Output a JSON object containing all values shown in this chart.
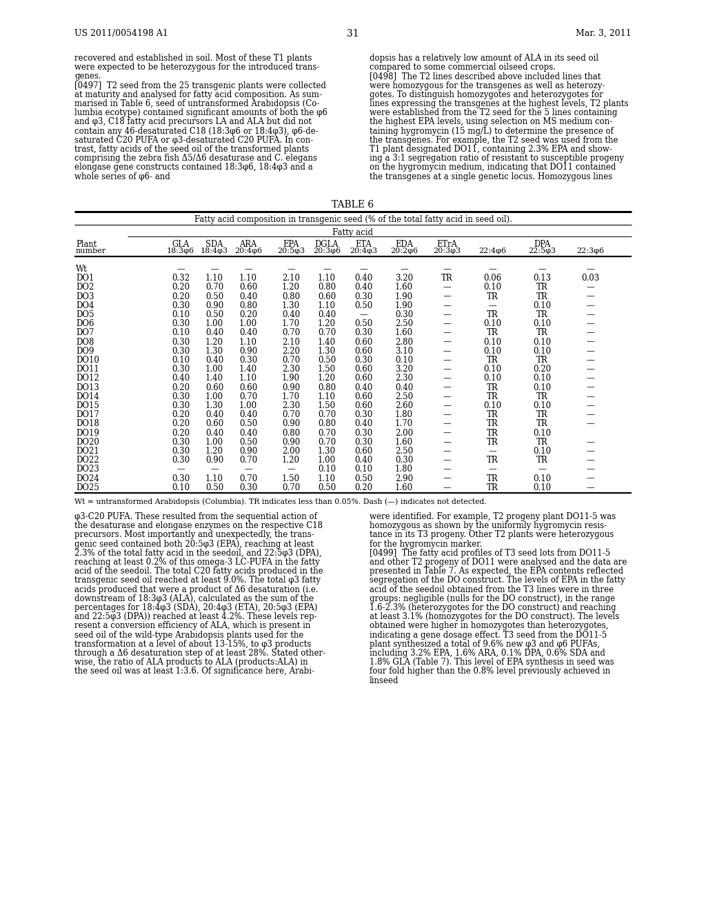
{
  "page_header_left": "US 2011/0054198 A1",
  "page_header_right": "Mar. 3, 2011",
  "page_number": "31",
  "table_title": "TABLE 6",
  "table_subtitle": "Fatty acid composition in transgenic seed (% of the total fatty acid in seed oil).",
  "col_group_header": "Fatty acid",
  "footnote": "Wt = untransformed Arabidopsis (Columbia). TR indicates less than 0.05%. Dash (—) indicates not detected.",
  "col_h1": [
    "Plant",
    "GLA",
    "SDA",
    "ARA",
    "EPA",
    "DGLA",
    "ETA",
    "EDA",
    "ETrA",
    "",
    "DPA",
    ""
  ],
  "col_h2": [
    "number",
    "18:3φ6",
    "18:4φ3",
    "20:4φ6",
    "20:5φ3",
    "20:3φ6",
    "20:4φ3",
    "20:2φ6",
    "20:3φ3",
    "22:4φ6",
    "22:5φ3",
    "22:3φ6"
  ],
  "rows": [
    [
      "Wt",
      "—",
      "—",
      "—",
      "—",
      "—",
      "—",
      "—",
      "—",
      "—",
      "—",
      "—"
    ],
    [
      "DO1",
      "0.32",
      "1.10",
      "1.10",
      "2.10",
      "1.10",
      "0.40",
      "3.20",
      "TR",
      "0.06",
      "0.13",
      "0.03"
    ],
    [
      "DO2",
      "0.20",
      "0.70",
      "0.60",
      "1.20",
      "0.80",
      "0.40",
      "1.60",
      "—",
      "0.10",
      "TR",
      "—"
    ],
    [
      "DO3",
      "0.20",
      "0.50",
      "0.40",
      "0.80",
      "0.60",
      "0.30",
      "1.90",
      "—",
      "TR",
      "TR",
      "—"
    ],
    [
      "DO4",
      "0.30",
      "0.90",
      "0.80",
      "1.30",
      "1.10",
      "0.50",
      "1.90",
      "—",
      "—",
      "0.10",
      "—"
    ],
    [
      "DO5",
      "0.10",
      "0.50",
      "0.20",
      "0.40",
      "0.40",
      "—",
      "0.30",
      "—",
      "TR",
      "TR",
      "—"
    ],
    [
      "DO6",
      "0.30",
      "1.00",
      "1.00",
      "1.70",
      "1.20",
      "0.50",
      "2.50",
      "—",
      "0.10",
      "0.10",
      "—"
    ],
    [
      "DO7",
      "0.10",
      "0.40",
      "0.40",
      "0.70",
      "0.70",
      "0.30",
      "1.60",
      "—",
      "TR",
      "TR",
      "—"
    ],
    [
      "DO8",
      "0.30",
      "1.20",
      "1.10",
      "2.10",
      "1.40",
      "0.60",
      "2.80",
      "—",
      "0.10",
      "0.10",
      "—"
    ],
    [
      "DO9",
      "0.30",
      "1.30",
      "0.90",
      "2.20",
      "1.30",
      "0.60",
      "3.10",
      "—",
      "0.10",
      "0.10",
      "—"
    ],
    [
      "DO10",
      "0.10",
      "0.40",
      "0.30",
      "0.70",
      "0.50",
      "0.30",
      "0.10",
      "—",
      "TR",
      "TR",
      "—"
    ],
    [
      "DO11",
      "0.30",
      "1.00",
      "1.40",
      "2.30",
      "1.50",
      "0.60",
      "3.20",
      "—",
      "0.10",
      "0.20",
      "—"
    ],
    [
      "DO12",
      "0.40",
      "1.40",
      "1.10",
      "1.90",
      "1.20",
      "0.60",
      "2.30",
      "—",
      "0.10",
      "0.10",
      "—"
    ],
    [
      "DO13",
      "0.20",
      "0.60",
      "0.60",
      "0.90",
      "0.80",
      "0.40",
      "0.40",
      "—",
      "TR",
      "0.10",
      "—"
    ],
    [
      "DO14",
      "0.30",
      "1.00",
      "0.70",
      "1.70",
      "1.10",
      "0.60",
      "2.50",
      "—",
      "TR",
      "TR",
      "—"
    ],
    [
      "DO15",
      "0.30",
      "1.30",
      "1.00",
      "2.30",
      "1.50",
      "0.60",
      "2.60",
      "—",
      "0.10",
      "0.10",
      "—"
    ],
    [
      "DO17",
      "0.20",
      "0.40",
      "0.40",
      "0.70",
      "0.70",
      "0.30",
      "1.80",
      "—",
      "TR",
      "TR",
      "—"
    ],
    [
      "DO18",
      "0.20",
      "0.60",
      "0.50",
      "0.90",
      "0.80",
      "0.40",
      "1.70",
      "—",
      "TR",
      "TR",
      "—"
    ],
    [
      "DO19",
      "0.20",
      "0.40",
      "0.40",
      "0.80",
      "0.70",
      "0.30",
      "2.00",
      "—",
      "TR",
      "0.10",
      ""
    ],
    [
      "DO20",
      "0.30",
      "1.00",
      "0.50",
      "0.90",
      "0.70",
      "0.30",
      "1.60",
      "—",
      "TR",
      "TR",
      "—"
    ],
    [
      "DO21",
      "0.30",
      "1.20",
      "0.90",
      "2.00",
      "1.30",
      "0.60",
      "2.50",
      "—",
      "—",
      "0.10",
      "—"
    ],
    [
      "DO22",
      "0.30",
      "0.90",
      "0.70",
      "1.20",
      "1.00",
      "0.40",
      "0.30",
      "—",
      "TR",
      "TR",
      "—"
    ],
    [
      "DO23",
      "—",
      "—",
      "—",
      "—",
      "0.10",
      "0.10",
      "1.80",
      "—",
      "—",
      "—",
      "—"
    ],
    [
      "DO24",
      "0.30",
      "1.10",
      "0.70",
      "1.50",
      "1.10",
      "0.50",
      "2.90",
      "—",
      "TR",
      "0.10",
      "—"
    ],
    [
      "DO25",
      "0.10",
      "0.50",
      "0.30",
      "0.70",
      "0.50",
      "0.20",
      "1.60",
      "—",
      "TR",
      "0.10",
      "—"
    ]
  ],
  "top_left_lines": [
    "recovered and established in soil. Most of these T1 plants",
    "were expected to be heterozygous for the introduced trans-",
    "genes.",
    "[0497]  T2 seed from the 25 transgenic plants were collected",
    "at maturity and analysed for fatty acid composition. As sum-",
    "marised in Table 6, seed of untransformed Arabidopsis (Co-",
    "lumbia ecotype) contained significant amounts of both the φ6",
    "and φ3, C18 fatty acid precursors LA and ALA but did not",
    "contain any 46-desaturated C18 (18:3φ6 or 18:4φ3), φ6-de-",
    "saturated C20 PUFA or φ3-desaturated C20 PUFA. In con-",
    "trast, fatty acids of the seed oil of the transformed plants",
    "comprising the zebra fish Δ5/Δ6 desaturase and C. elegans",
    "elongase gene constructs contained 18:3φ6, 18:4φ3 and a",
    "whole series of φ6- and"
  ],
  "top_left_italic_flags": [
    false,
    false,
    false,
    false,
    false,
    false,
    false,
    false,
    false,
    false,
    false,
    false,
    false,
    false
  ],
  "top_right_lines": [
    "dopsis has a relatively low amount of ALA in its seed oil",
    "compared to some commercial oilseed crops.",
    "[0498]  The T2 lines described above included lines that",
    "were homozygous for the transgenes as well as heterozy-",
    "gotes. To distinguish homozygotes and heterozygotes for",
    "lines expressing the transgenes at the highest levels, T2 plants",
    "were established from the T2 seed for the 5 lines containing",
    "the highest EPA levels, using selection on MS medium con-",
    "taining hygromycin (15 mg/L) to determine the presence of",
    "the transgenes. For example, the T2 seed was used from the",
    "T1 plant designated DO11, containing 2.3% EPA and show-",
    "ing a 3:1 segregation ratio of resistant to susceptible progeny",
    "on the hygromycin medium, indicating that DO11 contained",
    "the transgenes at a single genetic locus. Homozygous lines"
  ],
  "bottom_left_lines": [
    "φ3-C20 PUFA. These resulted from the sequential action of",
    "the desaturase and elongase enzymes on the respective C18",
    "precursors. Most importantly and unexpectedly, the trans-",
    "genic seed contained both 20:5φ3 (EPA), reaching at least",
    "2.3% of the total fatty acid in the seedoil, and 22:5φ3 (DPA),",
    "reaching at least 0.2% of this omega-3 LC-PUFA in the fatty",
    "acid of the seedoil. The total C20 fatty acids produced in the",
    "transgenic seed oil reached at least 9.0%. The total φ3 fatty",
    "acids produced that were a product of Δ6 desaturation (i.e.",
    "downstream of 18:3φ3 (ALA), calculated as the sum of the",
    "percentages for 18:4φ3 (SDA), 20:4φ3 (ETA), 20:5φ3 (EPA)",
    "and 22:5φ3 (DPA)) reached at least 4.2%. These levels rep-",
    "resent a conversion efficiency of ALA, which is present in",
    "seed oil of the wild-type Arabidopsis plants used for the",
    "transformation at a level of about 13-15%, to φ3 products",
    "through a Δ6 desaturation step of at least 28%. Stated other-",
    "wise, the ratio of ALA products to ALA (products:ALA) in",
    "the seed oil was at least 1:3.6. Of significance here, Arabi-"
  ],
  "bottom_right_lines": [
    "were identified. For example, T2 progeny plant DO11-5 was",
    "homozygous as shown by the uniformly hygromycin resis-",
    "tance in its T3 progeny. Other T2 plants were heterozygous",
    "for the hygromycin marker.",
    "[0499]  The fatty acid profiles of T3 seed lots from DO11-5",
    "and other T2 progeny of DO11 were analysed and the data are",
    "presented in Table 7. As expected, the EPA contents reflected",
    "segregation of the DO construct. The levels of EPA in the fatty",
    "acid of the seedoil obtained from the T3 lines were in three",
    "groups: negligible (nulls for the DO construct), in the range",
    "1.6-2.3% (heterozygotes for the DO construct) and reaching",
    "at least 3.1% (homozygotes for the DO construct). The levels",
    "obtained were higher in homozygotes than heterozygotes,",
    "indicating a gene dosage effect. T3 seed from the DO11-5",
    "plant synthesized a total of 9.6% new φ3 and φ6 PUFAs,",
    "including 3.2% EPA, 1.6% ARA, 0.1% DPA, 0.6% SDA and",
    "1.8% GLA (Table 7). This level of EPA synthesis in seed was",
    "four fold higher than the 0.8% level previously achieved in",
    "linseed"
  ]
}
